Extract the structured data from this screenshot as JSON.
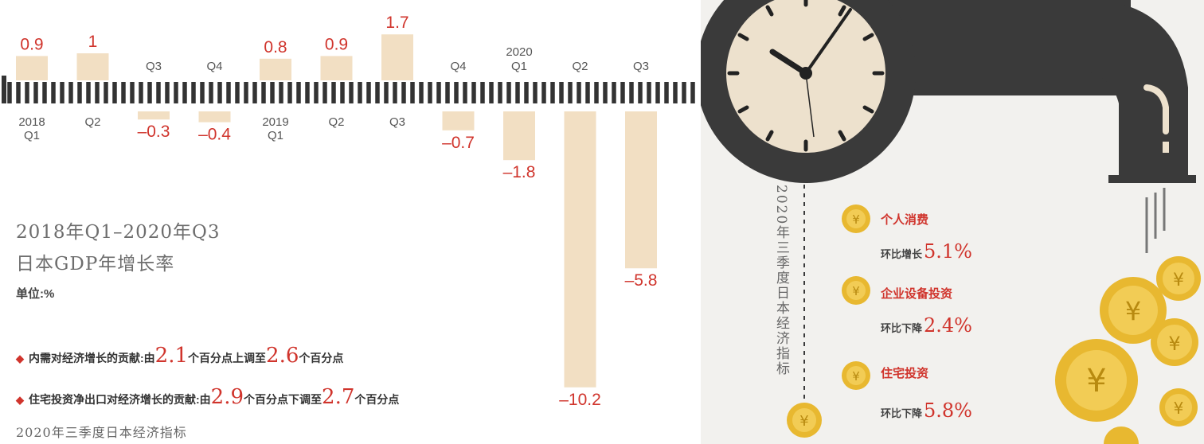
{
  "chart_data": {
    "type": "bar",
    "categories": [
      "2018 Q1",
      "Q2",
      "Q3",
      "Q4",
      "2019 Q1",
      "Q2",
      "Q3",
      "Q4",
      "2020 Q1",
      "Q2",
      "Q3"
    ],
    "tick_labels": [
      {
        "line1": "2018",
        "line2": "Q1"
      },
      {
        "line1": "Q2",
        "line2": ""
      },
      {
        "line1": "Q3",
        "line2": ""
      },
      {
        "line1": "Q4",
        "line2": ""
      },
      {
        "line1": "2019",
        "line2": "Q1"
      },
      {
        "line1": "Q2",
        "line2": ""
      },
      {
        "line1": "Q3",
        "line2": ""
      },
      {
        "line1": "Q4",
        "line2": ""
      },
      {
        "line1": "2020",
        "line2": "Q1"
      },
      {
        "line1": "Q2",
        "line2": ""
      },
      {
        "line1": "Q3",
        "line2": ""
      }
    ],
    "values": [
      0.9,
      1,
      -0.3,
      -0.4,
      0.8,
      0.9,
      1.7,
      -0.7,
      -1.8,
      -10.2,
      -5.8
    ],
    "value_labels": [
      "0.9",
      "1",
      "–0.3",
      "–0.4",
      "0.8",
      "0.9",
      "1.7",
      "–0.7",
      "–1.8",
      "–10.2",
      "–5.8"
    ],
    "title_line1": "2018年Q1–2020年Q3",
    "title_line2": "日本GDP年增长率",
    "unit": "单位:%",
    "bar_color": "#f2dfc3",
    "label_color": "#d0342c",
    "axis_color": "#333333"
  },
  "notes": [
    {
      "prefix": "内需对经济增长的贡献:由",
      "v1": "2.1",
      "mid": "个百分点上调至",
      "v2": "2.6",
      "suffix": "个百分点"
    },
    {
      "prefix": "住宅投资净出口对经济增长的贡献:由",
      "v1": "2.9",
      "mid": "个百分点下调至",
      "v2": "2.7",
      "suffix": "个百分点"
    }
  ],
  "footer": "2020年三季度日本经济指标",
  "right_panel": {
    "vertical_title": "2020年三季度日本经济指标",
    "items": [
      {
        "title": "个人消费",
        "desc": "环比增长",
        "value": "5.1%"
      },
      {
        "title": "企业设备投资",
        "desc": "环比下降",
        "value": "2.4%"
      },
      {
        "title": "住宅投资",
        "desc": "环比下降",
        "value": "5.8%"
      }
    ],
    "coin_symbol": "¥",
    "coin_color": "#e8b830",
    "pipe_color": "#3a3a3a",
    "clock_face_color": "#ede1cd"
  }
}
